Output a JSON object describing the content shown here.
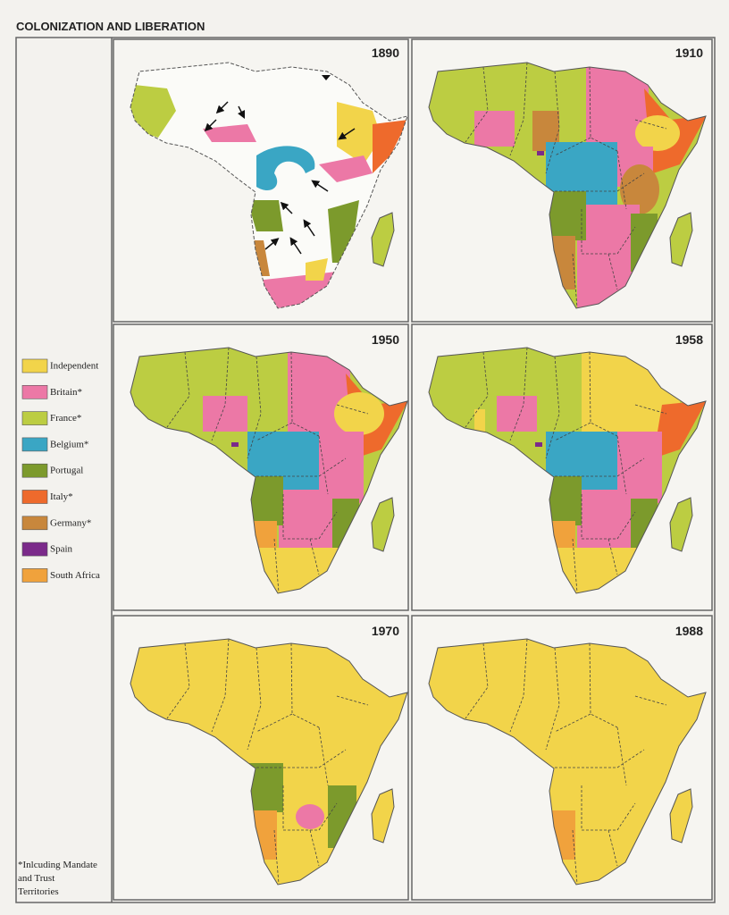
{
  "header": {
    "title": "COLONIZATION AND LIBERATION"
  },
  "panels": [
    {
      "year": "1890"
    },
    {
      "year": "1910"
    },
    {
      "year": "1950"
    },
    {
      "year": "1958"
    },
    {
      "year": "1970"
    },
    {
      "year": "1988"
    }
  ],
  "legend": {
    "items": [
      {
        "label": "Independent",
        "color": "#f2d44a"
      },
      {
        "label": "Britain*",
        "color": "#ec78a6"
      },
      {
        "label": "France*",
        "color": "#bccd42"
      },
      {
        "label": "Belgium*",
        "color": "#3aa6c4"
      },
      {
        "label": "Portugal",
        "color": "#7c9a2c"
      },
      {
        "label": "Italy*",
        "color": "#ee6a2c"
      },
      {
        "label": "Germany*",
        "color": "#c8873c"
      },
      {
        "label": "Spain",
        "color": "#7b2a8a"
      },
      {
        "label": "South Africa",
        "color": "#f0a23c"
      }
    ]
  },
  "footnote": {
    "lines": [
      "*Inlcuding Mandate",
      "and Trust",
      "Territories"
    ]
  }
}
